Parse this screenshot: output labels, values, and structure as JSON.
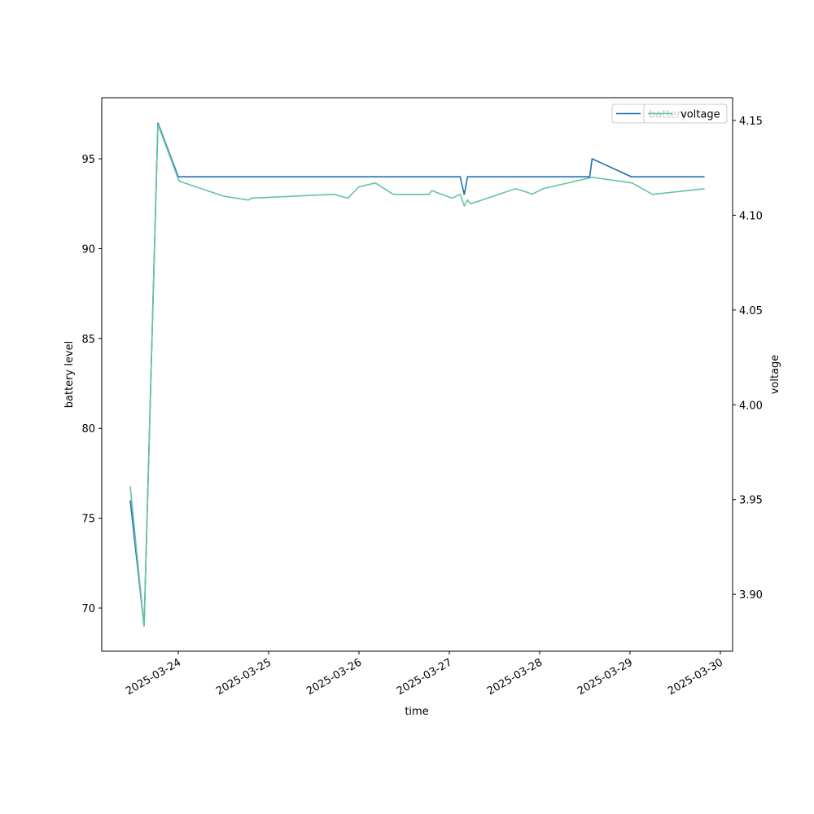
{
  "chart_data": {
    "type": "line",
    "x_label": "time",
    "y_label": "battery level",
    "y2_label": "voltage",
    "xlim": [
      "2025-03-23T03:40",
      "2025-03-30T03:15"
    ],
    "xticks": [
      "2025-03-24",
      "2025-03-25",
      "2025-03-26",
      "2025-03-27",
      "2025-03-28",
      "2025-03-29",
      "2025-03-30"
    ],
    "ylim": [
      67.6,
      98.4
    ],
    "yticks": [
      70,
      75,
      80,
      85,
      90,
      95
    ],
    "y2lim": [
      3.87,
      4.162
    ],
    "y2ticks": [
      {
        "value": 3.9,
        "label": "3.90"
      },
      3.95,
      {
        "value": 4,
        "label": "4.00"
      },
      4.05,
      {
        "value": 4.1,
        "label": "4.10"
      },
      4.15
    ],
    "legend": "upper right",
    "grid": false,
    "series": [
      {
        "name": "battery",
        "color": "#1f6fb2",
        "x": [
          "2025-03-23T11:14",
          "2025-03-23T14:55",
          "2025-03-23T18:35",
          "2025-03-24T00:00",
          "2025-03-27T02:53",
          "2025-03-27T03:58",
          "2025-03-27T04:49",
          "2025-03-28T13:17",
          "2025-03-28T13:56",
          "2025-03-29T00:20",
          "2025-03-29T19:49"
        ],
        "values": [
          76,
          69,
          97,
          94,
          94,
          93,
          94,
          94,
          95,
          94,
          94
        ]
      },
      {
        "name": "voltage",
        "color": "#66c2a5",
        "axis": "y2",
        "x": [
          "2025-03-23T11:14",
          "2025-03-23T14:55",
          "2025-03-23T18:35",
          "2025-03-24T00:13",
          "2025-03-24T12:07",
          "2025-03-24T18:37",
          "2025-03-24T19:29",
          "2025-03-25T17:20",
          "2025-03-25T21:01",
          "2025-03-26T00:02",
          "2025-03-26T04:22",
          "2025-03-26T09:08",
          "2025-03-26T18:39",
          "2025-03-26T19:18",
          "2025-03-27T00:43",
          "2025-03-27T02:53",
          "2025-03-27T03:58",
          "2025-03-27T04:49",
          "2025-03-27T05:41",
          "2025-03-27T17:35",
          "2025-03-27T20:50",
          "2025-03-27T21:55",
          "2025-03-28T00:57",
          "2025-03-28T13:56",
          "2025-03-29T00:33",
          "2025-03-29T05:58",
          "2025-03-29T19:49"
        ],
        "values": [
          3.957,
          3.883,
          4.148,
          4.118,
          4.11,
          4.108,
          4.109,
          4.111,
          4.109,
          4.115,
          4.117,
          4.111,
          4.111,
          4.113,
          4.109,
          4.111,
          4.105,
          4.108,
          4.106,
          4.114,
          4.112,
          4.111,
          4.114,
          4.12,
          4.117,
          4.111,
          4.114
        ]
      }
    ]
  }
}
